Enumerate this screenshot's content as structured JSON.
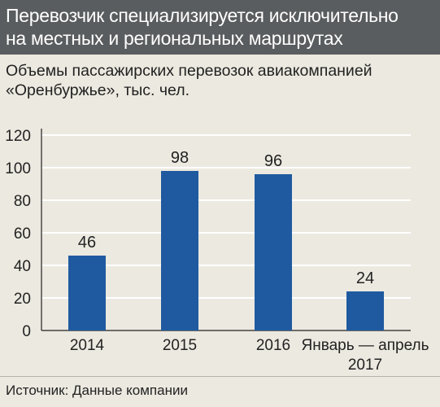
{
  "header": {
    "title_line1": "Перевозчик специализируется исключительно",
    "title_line2": "на местных и региональных маршрутах"
  },
  "colors": {
    "header_bg": "#5a5d5f",
    "page_bg": "#ece9e0",
    "bar": "#1f5aa0",
    "grid": "#ffffff"
  },
  "chart_data": {
    "type": "bar",
    "title": "Объемы пассажирских перевозок авиакомпанией «Оренбуржье», тыс. чел.",
    "subtitle_line1": "Объемы пассажирских перевозок авиакомпанией",
    "subtitle_line2": "«Оренбуржье», тыс. чел.",
    "categories": [
      [
        "2014"
      ],
      [
        "2015"
      ],
      [
        "2016"
      ],
      [
        "Январь — апрель",
        "2017"
      ]
    ],
    "values": [
      46,
      98,
      96,
      24
    ],
    "data_labels": [
      "46",
      "98",
      "96",
      "24"
    ],
    "yticks": [
      "0",
      "20",
      "40",
      "60",
      "80",
      "100",
      "120"
    ],
    "ylim": [
      0,
      120
    ],
    "grid": true,
    "legend": "none"
  },
  "source": "Источник: Данные компании"
}
